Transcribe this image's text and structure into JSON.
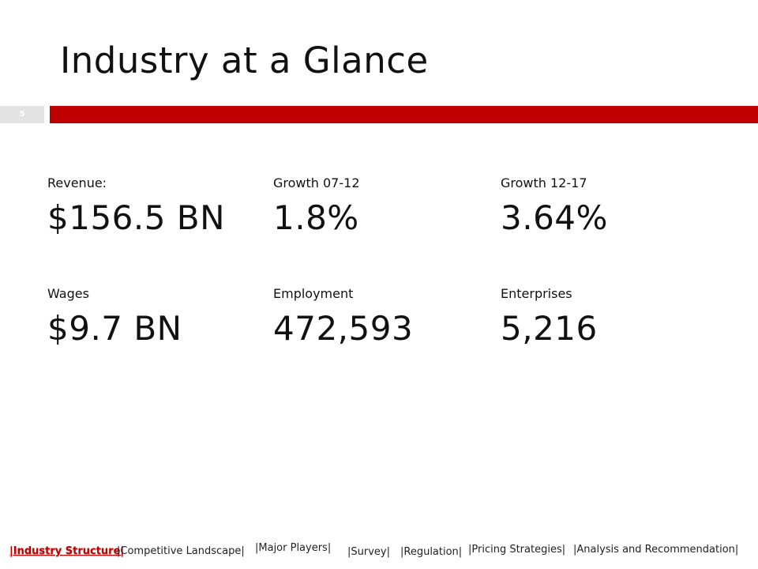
{
  "slide": {
    "title": "Industry at a Glance",
    "number": "5"
  },
  "stats": [
    {
      "label": "Revenue:",
      "value": "$156.5 BN"
    },
    {
      "label": "Growth 07-12",
      "value": "1.8%"
    },
    {
      "label": "Growth 12-17",
      "value": "3.64%"
    },
    {
      "label": "Wages",
      "value": "$9.7 BN"
    },
    {
      "label": "Employment",
      "value": "472,593"
    },
    {
      "label": "Enterprises",
      "value": "5,216"
    }
  ],
  "nav": {
    "industry_structure": "|Industry Structure|",
    "competitive_landscape": "|Competitive Landscape|",
    "major_players": "|Major Players|",
    "survey": "|Survey|",
    "regulation": "|Regulation|",
    "pricing_strategies": "|Pricing Strategies|",
    "analysis": "|Analysis and Recommendation|"
  },
  "colors": {
    "accent": "#c00000",
    "number_box": "#e3e3e3"
  }
}
